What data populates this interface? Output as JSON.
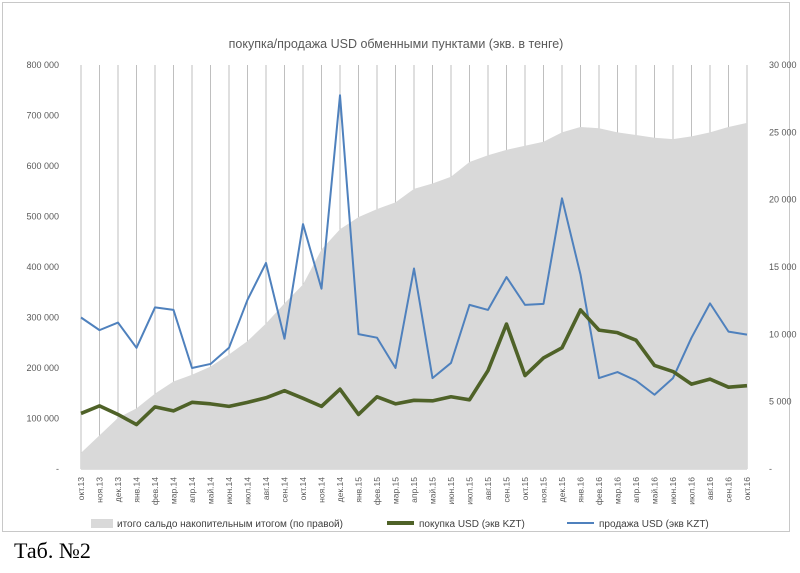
{
  "caption": "Таб. №2",
  "chart_data": {
    "type": "line",
    "title": "покупка/продажа USD обменными пунктами (экв. в тенге)",
    "categories": [
      "окт.13",
      "ноя.13",
      "дек.13",
      "янв.14",
      "фев.14",
      "мар.14",
      "апр.14",
      "май.14",
      "июн.14",
      "июл.14",
      "авг.14",
      "сен.14",
      "окт.14",
      "ноя.14",
      "дек.14",
      "янв.15",
      "фев.15",
      "мар.15",
      "апр.15",
      "май.15",
      "июн.15",
      "июл.15",
      "авг.15",
      "сен.15",
      "окт.15",
      "ноя.15",
      "дек.15",
      "янв.16",
      "фев.16",
      "мар.16",
      "апр.16",
      "май.16",
      "июн.16",
      "июл.16",
      "авг.16",
      "сен.16",
      "окт.16"
    ],
    "y_left": {
      "min": 0,
      "max": 800000,
      "ticks": [
        0,
        100000,
        200000,
        300000,
        400000,
        500000,
        600000,
        700000,
        800000
      ],
      "tick_labels": [
        "-",
        "100 000",
        "200 000",
        "300 000",
        "400 000",
        "500 000",
        "600 000",
        "700 000",
        "800 000"
      ]
    },
    "y_right": {
      "min": 0,
      "max": 30000,
      "ticks": [
        0,
        5000,
        10000,
        15000,
        20000,
        25000,
        30000
      ],
      "tick_labels": [
        "-",
        "5 000",
        "10 000",
        "15 000",
        "20 000",
        "25 000",
        "30 000"
      ]
    },
    "grid": "vertical",
    "legend_position": "bottom",
    "series": [
      {
        "name": "итого сальдо накопительным итогом (по правой)",
        "kind": "area",
        "axis": "right",
        "color": "#d9d9d9",
        "values": [
          1200,
          2500,
          3800,
          4500,
          5600,
          6500,
          7000,
          7600,
          8500,
          9500,
          10800,
          12300,
          13700,
          16300,
          17800,
          18700,
          19300,
          19800,
          20800,
          21200,
          21700,
          22800,
          23300,
          23700,
          24000,
          24300,
          25000,
          25400,
          25300,
          25000,
          24800,
          24600,
          24500,
          24700,
          25000,
          25400,
          25700
        ]
      },
      {
        "name": "покупка USD (экв KZT)",
        "kind": "line",
        "axis": "left",
        "color": "#4f6228",
        "values": [
          110000,
          125000,
          108000,
          88000,
          123000,
          115000,
          132000,
          129000,
          124000,
          132000,
          141000,
          155000,
          140000,
          124000,
          158000,
          108000,
          143000,
          129000,
          136000,
          135000,
          143000,
          137000,
          195000,
          287000,
          185000,
          220000,
          240000,
          315000,
          275000,
          270000,
          255000,
          205000,
          193000,
          168000,
          178000,
          162000,
          165000
        ]
      },
      {
        "name": "продажа USD (экв KZT)",
        "kind": "line",
        "axis": "left",
        "color": "#4f81bd",
        "values": [
          300000,
          275000,
          290000,
          240000,
          320000,
          315000,
          200000,
          208000,
          240000,
          335000,
          408000,
          258000,
          485000,
          357000,
          740000,
          267000,
          260000,
          200000,
          397000,
          180000,
          210000,
          325000,
          315000,
          380000,
          325000,
          327000,
          536000,
          385000,
          180000,
          192000,
          175000,
          147000,
          180000,
          260000,
          328000,
          272000,
          266000
        ]
      }
    ]
  }
}
